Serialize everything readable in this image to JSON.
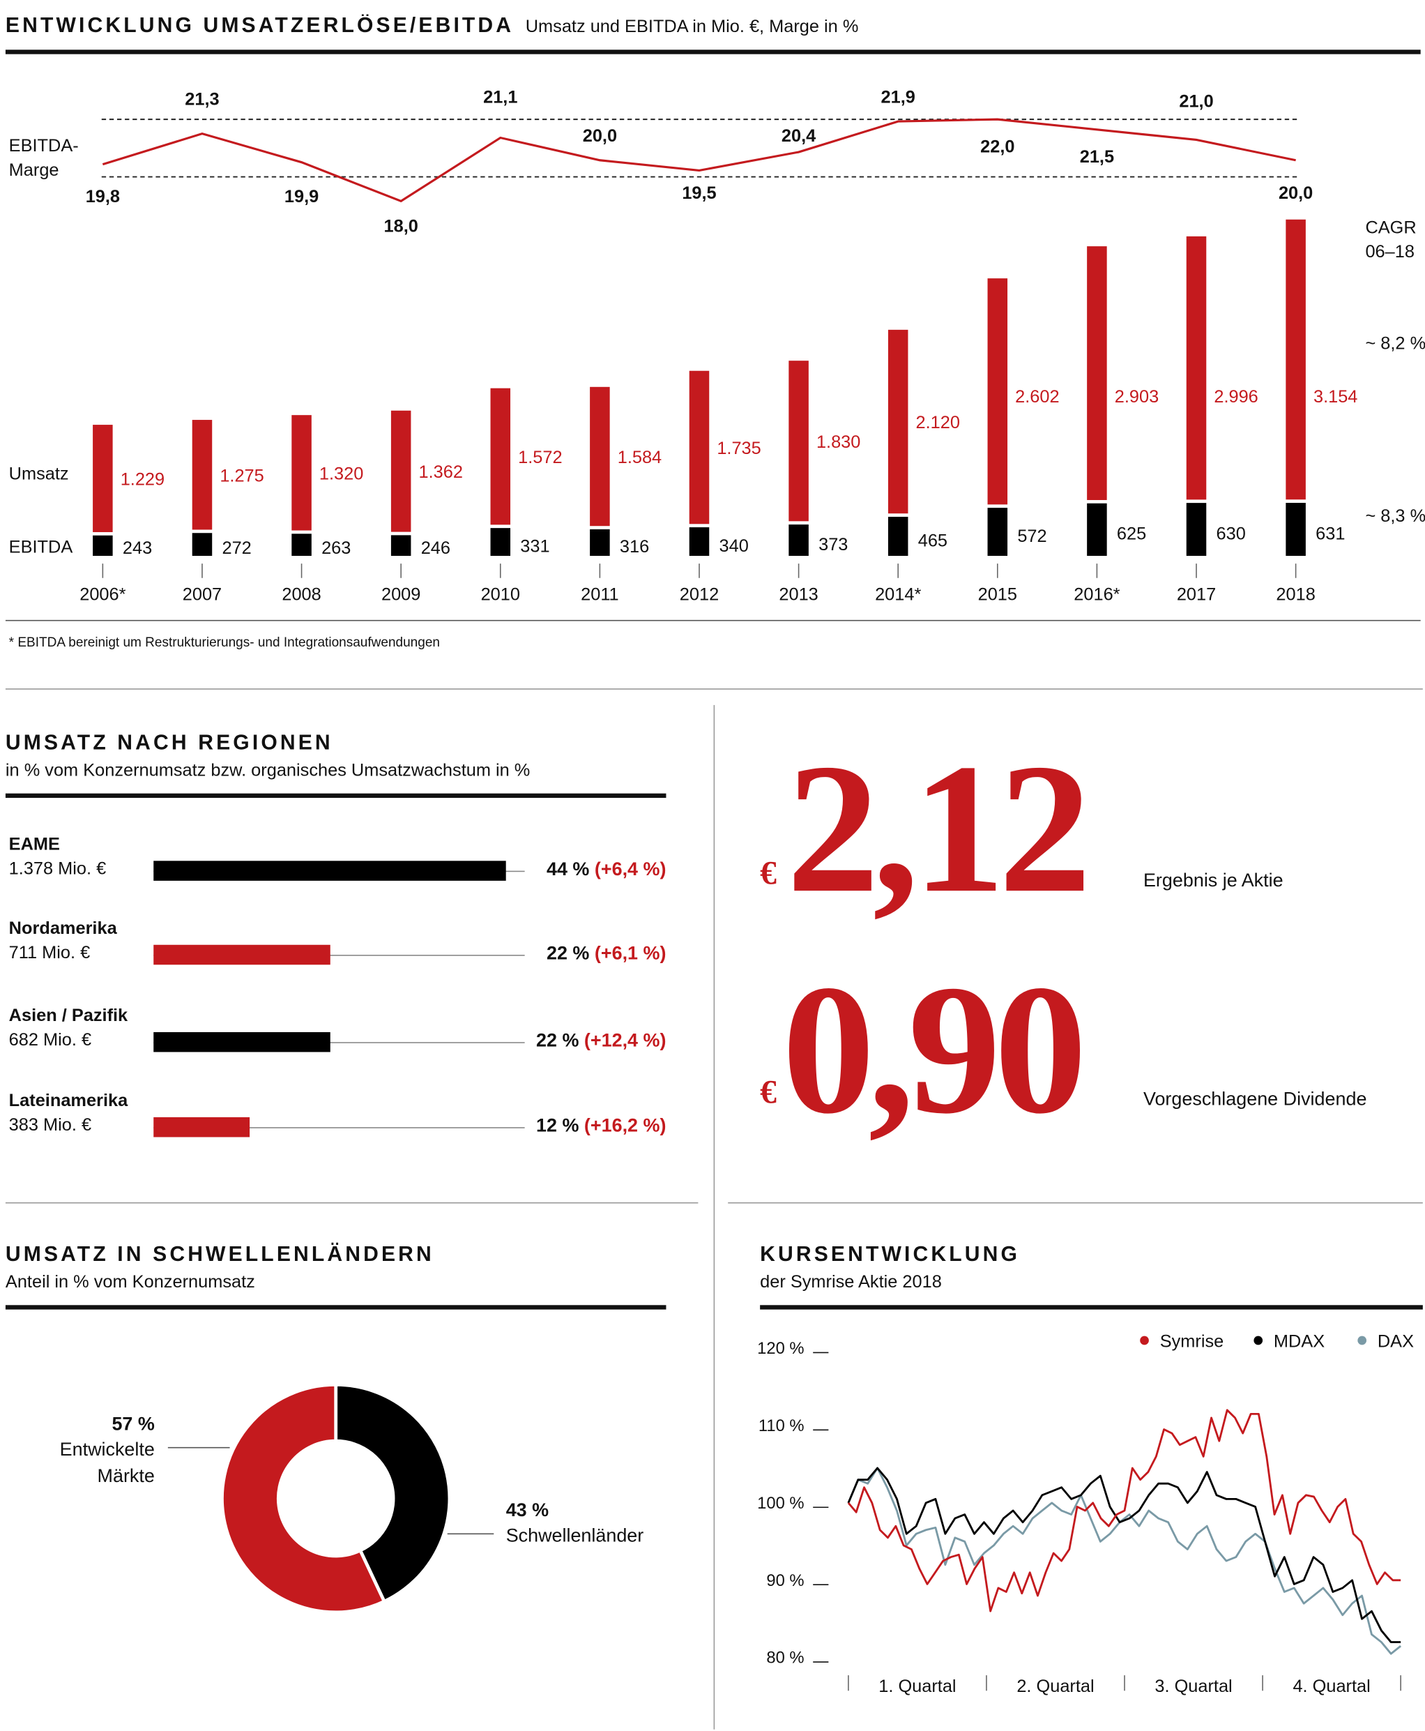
{
  "header": {
    "title": "ENTWICKLUNG UMSATZERLÖSE/EBITDA",
    "subtitle": "Umsatz und EBITDA in Mio. €, Marge in %"
  },
  "chart_data": [
    {
      "type": "bar",
      "title": "ENTWICKLUNG UMSATZERLÖSE/EBITDA",
      "categories": [
        "2006*",
        "2007",
        "2008",
        "2009",
        "2010",
        "2011",
        "2012",
        "2013",
        "2014*",
        "2015",
        "2016*",
        "2017",
        "2018"
      ],
      "series": [
        {
          "name": "Umsatz",
          "values": [
            1229,
            1275,
            1320,
            1362,
            1572,
            1584,
            1735,
            1830,
            2120,
            2602,
            2903,
            2996,
            3154
          ],
          "color": "#c41a1e"
        },
        {
          "name": "EBITDA",
          "values": [
            243,
            272,
            263,
            246,
            331,
            316,
            340,
            373,
            465,
            572,
            625,
            630,
            631
          ],
          "color": "#000000"
        },
        {
          "name": "EBITDA-Marge",
          "type": "line",
          "values": [
            19.8,
            21.3,
            19.9,
            18.0,
            21.1,
            20.0,
            19.5,
            20.4,
            21.9,
            22.0,
            21.5,
            21.0,
            20.0
          ],
          "color": "#c41a1e"
        }
      ],
      "row_labels": {
        "margin": "EBITDA-\nMarge",
        "umsatz": "Umsatz",
        "ebitda": "EBITDA"
      },
      "cagr": {
        "title": "CAGR\n06–18",
        "umsatz": "~ 8,2 %",
        "ebitda": "~ 8,3 %"
      },
      "footnote": "* EBITDA bereinigt um Restrukturierungs- und Integrationsaufwendungen"
    },
    {
      "type": "pie",
      "title": "UMSATZ IN SCHWELLENLÄNDERN",
      "subtitle": "Anteil in % vom Konzernumsatz",
      "slices": [
        {
          "label": "Schwellenländer",
          "value": 43,
          "value_label": "43 %",
          "color": "#000000"
        },
        {
          "label": "Entwickelte\nMärkte",
          "value": 57,
          "value_label": "57 %",
          "color": "#c41a1e"
        }
      ]
    },
    {
      "type": "line",
      "title": "KURSENTWICKLUNG",
      "subtitle": "der Symrise Aktie 2018",
      "y_ticks": [
        "120 %",
        "110 %",
        "100 %",
        "90 %",
        "80 %"
      ],
      "ylim": [
        80,
        120
      ],
      "x_labels": [
        "1. Quartal",
        "2. Quartal",
        "3. Quartal",
        "4. Quartal"
      ],
      "series": [
        {
          "name": "Symrise",
          "color": "#c41a1e",
          "values": [
            100,
            98.8,
            102,
            100,
            96.5,
            95.5,
            97,
            94.5,
            94,
            91.5,
            89.5,
            91,
            92.5,
            93,
            93.3,
            89.5,
            91.5,
            93,
            86,
            89,
            88.5,
            91,
            88.3,
            91,
            88,
            91,
            93.5,
            92.5,
            94,
            99.5,
            99,
            100,
            98,
            97,
            98.5,
            99,
            104.5,
            103,
            104,
            106,
            109.5,
            109,
            107.5,
            108,
            108.5,
            106,
            111,
            108,
            112,
            111,
            109,
            111.5,
            111.5,
            106,
            98.5,
            101,
            96,
            100,
            101,
            100.8,
            99,
            97.5,
            99.5,
            100.5,
            96,
            95,
            92,
            89.5,
            91,
            90,
            90
          ]
        },
        {
          "name": "MDAX",
          "color": "#000000",
          "values": [
            100,
            103,
            103,
            104.5,
            103,
            100.5,
            96,
            97,
            100,
            100.5,
            96,
            98,
            98.5,
            96,
            97.5,
            96,
            98,
            99,
            97.5,
            99,
            101,
            101.5,
            102,
            100.5,
            101,
            102.5,
            103.5,
            99.5,
            97.5,
            98,
            99,
            101,
            102.5,
            102.5,
            102,
            100,
            101.5,
            104,
            101,
            100.5,
            100.5,
            100,
            99.5,
            95,
            90.5,
            93,
            89.5,
            90,
            93,
            92,
            88.5,
            89,
            90,
            85,
            86,
            83.5,
            82,
            82
          ]
        },
        {
          "name": "DAX",
          "color": "#7a9aa6",
          "values": [
            100,
            103,
            102.5,
            104.5,
            102,
            99,
            94.5,
            96,
            96.5,
            96.8,
            92,
            95.5,
            95,
            92,
            93.5,
            94.5,
            96,
            97,
            96,
            98,
            99,
            100,
            99,
            98.5,
            101,
            98,
            95,
            96,
            97.5,
            98.5,
            97,
            99,
            98,
            97.5,
            95,
            94,
            96,
            97,
            94,
            92.5,
            93,
            95,
            96,
            95,
            91.5,
            88.5,
            89,
            87,
            88,
            89,
            87.5,
            85.5,
            87,
            88,
            83,
            82,
            80.5,
            81.5
          ]
        }
      ]
    }
  ],
  "regions": {
    "title": "UMSATZ NACH REGIONEN",
    "subtitle": "in % vom Konzernumsatz bzw. organisches Umsatzwachstum in %",
    "items": [
      {
        "name": "EAME",
        "revenue": "1.378 Mio. €",
        "share": 44,
        "share_label": "44 %",
        "growth": "(+6,4 %)",
        "color": "#000000"
      },
      {
        "name": "Nordamerika",
        "revenue": "711 Mio. €",
        "share": 22,
        "share_label": "22 %",
        "growth": "(+6,1 %)",
        "color": "#c41a1e"
      },
      {
        "name": "Asien / Pazifik",
        "revenue": "682 Mio. €",
        "share": 22,
        "share_label": "22 %",
        "growth": "(+12,4 %)",
        "color": "#000000"
      },
      {
        "name": "Lateinamerika",
        "revenue": "383 Mio. €",
        "share": 12,
        "share_label": "12 %",
        "growth": "(+16,2 %)",
        "color": "#c41a1e"
      }
    ]
  },
  "kpis": [
    {
      "currency": "€",
      "value": "2,12",
      "label": "Ergebnis je Aktie"
    },
    {
      "currency": "€",
      "value": "0,90",
      "label": "Vorgeschlagene Dividende"
    }
  ]
}
